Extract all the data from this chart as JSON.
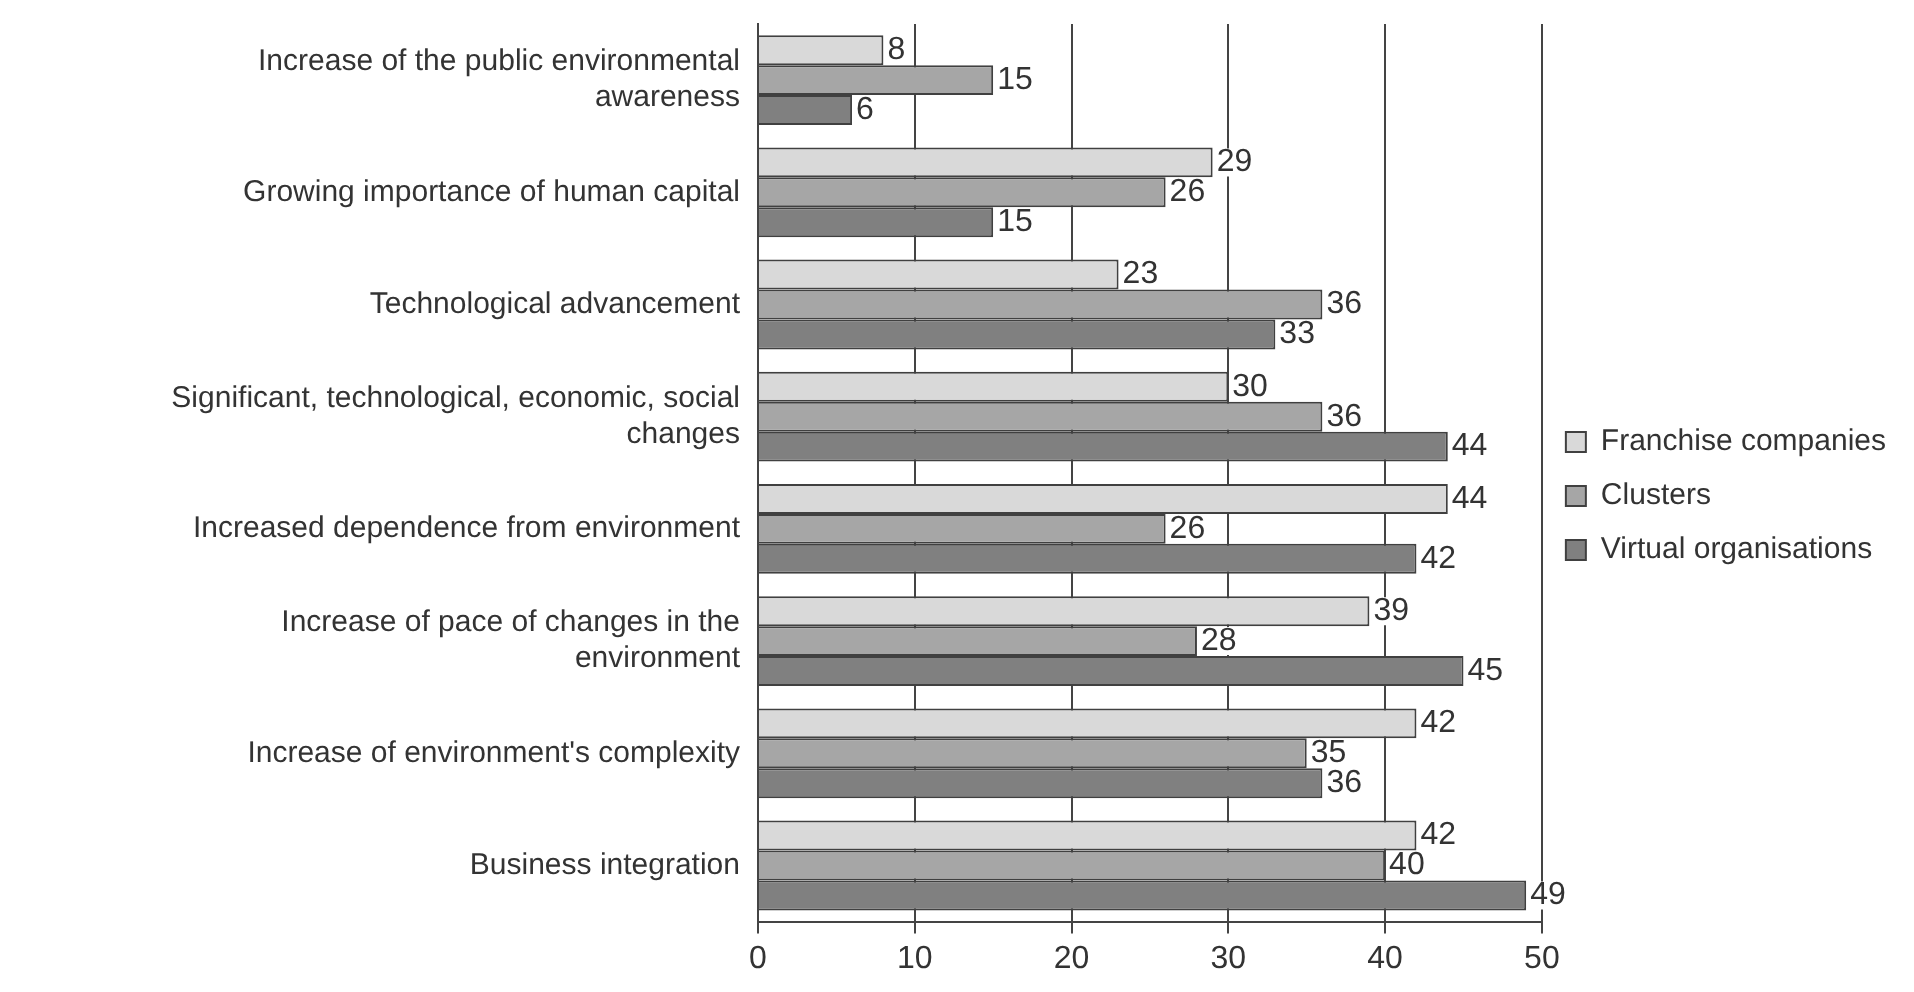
{
  "chart_data": {
    "type": "bar",
    "orientation": "horizontal",
    "categories": [
      "Increase of the public environmental awareness",
      "Growing importance of human capital",
      "Technological advancement",
      "Significant, technological, economic, social changes",
      "Increased dependence from environment",
      "Increase of pace of changes in the environment",
      "Increase of environment's complexity",
      "Business integration"
    ],
    "series": [
      {
        "name": "Franchise companies",
        "color": "#d9d9d9",
        "values": [
          8,
          29,
          23,
          30,
          44,
          39,
          42,
          42
        ]
      },
      {
        "name": "Clusters",
        "color": "#a6a6a6",
        "values": [
          15,
          26,
          36,
          36,
          26,
          28,
          35,
          40
        ]
      },
      {
        "name": "Virtual organisations",
        "color": "#808080",
        "values": [
          6,
          15,
          33,
          44,
          42,
          45,
          36,
          49
        ]
      }
    ],
    "xlim": [
      0,
      50
    ],
    "xticks": [
      0,
      10,
      20,
      30,
      40,
      50
    ],
    "grid": "x",
    "legend": "right",
    "data_labels": true
  }
}
